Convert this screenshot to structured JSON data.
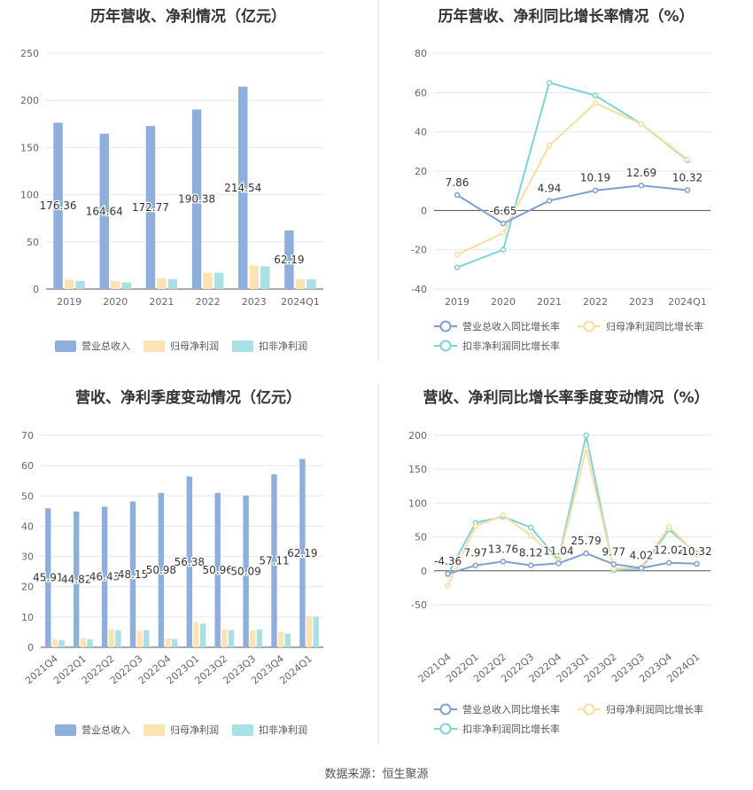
{
  "source": "数据来源：恒生聚源",
  "colors": {
    "revenue": "#8eaedb",
    "parent_profit": "#fde2b3",
    "deducted_profit": "#a8e0e3",
    "revenue_line": "#7f9fd2",
    "parent_line": "#fcdca0",
    "deducted_line": "#7fd3d5"
  },
  "chart_data": [
    {
      "id": "annual-bars",
      "type": "bar",
      "title": "历年营收、净利情况（亿元）",
      "categories": [
        "2019",
        "2020",
        "2021",
        "2022",
        "2023",
        "2024Q1"
      ],
      "ylim": [
        0,
        250
      ],
      "yticks": [
        0,
        50,
        100,
        150,
        200,
        250
      ],
      "series": [
        {
          "name": "营业总收入",
          "values": [
            176.36,
            164.64,
            172.77,
            190.38,
            214.54,
            62.19
          ],
          "labels": [
            "176.36",
            "164.64",
            "172.77",
            "190.38",
            "214.54",
            "62.19"
          ]
        },
        {
          "name": "归母净利润",
          "values": [
            10.0,
            8.7,
            11.4,
            17.2,
            25.0,
            10.5
          ]
        },
        {
          "name": "扣非净利润",
          "values": [
            8.6,
            7.0,
            10.5,
            17.2,
            24.0,
            10.3
          ]
        }
      ],
      "legend": "bottom"
    },
    {
      "id": "annual-growth",
      "type": "line",
      "title": "历年营收、净利同比增长率情况（%）",
      "categories": [
        "2019",
        "2020",
        "2021",
        "2022",
        "2023",
        "2024Q1"
      ],
      "ylim": [
        -40,
        80
      ],
      "yticks": [
        -40,
        -20,
        0,
        20,
        40,
        60,
        80
      ],
      "series": [
        {
          "name": "营业总收入同比增长率",
          "values": [
            7.86,
            -6.65,
            4.94,
            10.19,
            12.69,
            10.32
          ],
          "labels": [
            "7.86",
            "-6.65",
            "4.94",
            "10.19",
            "12.69",
            "10.32"
          ]
        },
        {
          "name": "归母净利润同比增长率",
          "values": [
            -22.5,
            -11.5,
            33,
            54.5,
            44,
            26
          ]
        },
        {
          "name": "扣非净利润同比增长率",
          "values": [
            -29,
            -20,
            65,
            58.5,
            44,
            25.5
          ]
        }
      ],
      "legend": "bottom"
    },
    {
      "id": "quarterly-bars",
      "type": "bar",
      "title": "营收、净利季度变动情况（亿元）",
      "categories": [
        "2021Q4",
        "2022Q1",
        "2022Q2",
        "2022Q3",
        "2022Q4",
        "2023Q1",
        "2023Q2",
        "2023Q3",
        "2023Q4",
        "2024Q1"
      ],
      "ylim": [
        0,
        70
      ],
      "yticks": [
        0,
        10,
        20,
        30,
        40,
        50,
        60,
        70
      ],
      "series": [
        {
          "name": "营业总收入",
          "values": [
            45.91,
            44.82,
            46.43,
            48.15,
            50.98,
            56.38,
            50.96,
            50.09,
            57.11,
            62.19
          ],
          "labels": [
            "45.91",
            "44.82",
            "46.43",
            "48.15",
            "50.98",
            "56.38",
            "50.96",
            "50.09",
            "57.11",
            "62.19"
          ]
        },
        {
          "name": "归母净利润",
          "values": [
            2.6,
            3.0,
            5.9,
            5.4,
            3.0,
            8.3,
            5.9,
            5.6,
            5.1,
            10.3
          ]
        },
        {
          "name": "扣非净利润",
          "values": [
            2.3,
            2.6,
            5.6,
            5.6,
            2.7,
            7.8,
            5.7,
            5.9,
            4.5,
            10.1
          ]
        }
      ],
      "legend": "bottom"
    },
    {
      "id": "quarterly-growth",
      "type": "line",
      "title": "营收、净利同比增长率季度变动情况（%）",
      "categories": [
        "2021Q4",
        "2022Q1",
        "2022Q2",
        "2022Q3",
        "2022Q4",
        "2023Q1",
        "2023Q2",
        "2023Q3",
        "2023Q4",
        "2024Q1"
      ],
      "ylim": [
        -50,
        200
      ],
      "yticks": [
        -50,
        0,
        50,
        100,
        150,
        200
      ],
      "series": [
        {
          "name": "营业总收入同比增长率",
          "values": [
            -4.36,
            7.97,
            13.76,
            8.12,
            11.04,
            25.79,
            9.77,
            4.02,
            12.02,
            10.32
          ],
          "labels": [
            "-4.36",
            "7.97",
            "13.76",
            "8.12",
            "11.04",
            "25.79",
            "9.77",
            "4.02",
            "12.02",
            "10.32"
          ]
        },
        {
          "name": "归母净利润同比增长率",
          "values": [
            -22,
            66,
            82,
            52,
            14,
            180,
            3,
            5,
            65,
            24
          ]
        },
        {
          "name": "扣非净利润同比增长率",
          "values": [
            -5,
            71,
            80,
            64,
            16,
            200,
            1,
            3,
            61,
            26
          ]
        }
      ],
      "legend": "bottom"
    }
  ]
}
